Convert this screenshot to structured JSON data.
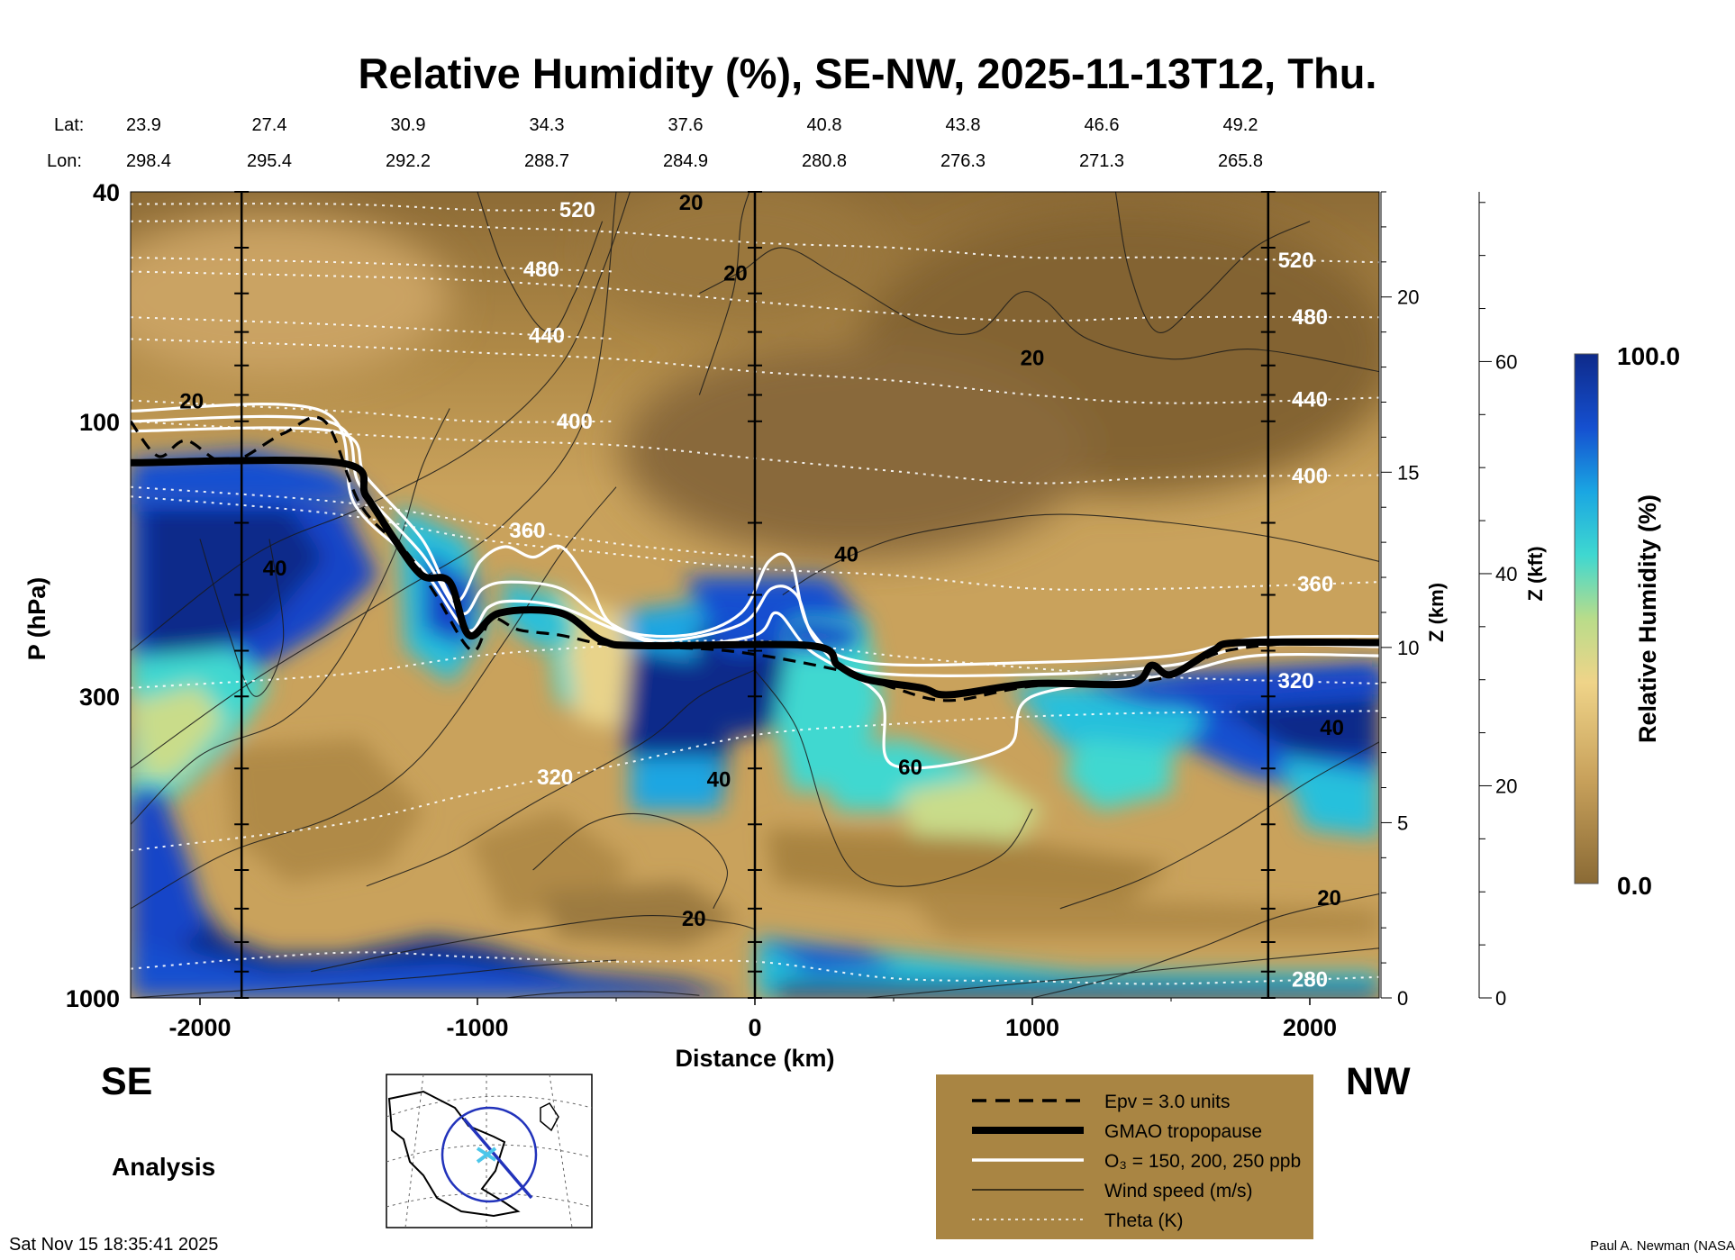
{
  "chart_data": {
    "type": "heatmap",
    "title": "Relative Humidity (%), SE-NW, 2025-11-13T12, Thu.",
    "xlabel": "Distance (km)",
    "ylabel": "P (hPa)",
    "ylabel_right_km": "Z (km)",
    "ylabel_right_kft": "Z (kft)",
    "colorbar_label": "Relative Humidity (%)",
    "colorbar_range": [
      0.0,
      100.0
    ],
    "colorbar_max_label": "100.0",
    "colorbar_min_label": "0.0",
    "colors": {
      "dry": "#8a6a35",
      "mid": "#e8c777",
      "moist_low": "#35d2cd",
      "moist_high": "#0e2a8a",
      "tropopause": "#000000",
      "ozone": "#ffffff"
    },
    "xlim": [
      -2250,
      2250
    ],
    "ylim": [
      1000,
      40
    ],
    "y_scale": "log",
    "x_ticks": [
      {
        "v": -2000,
        "label": "-2000"
      },
      {
        "v": -1000,
        "label": "-1000"
      },
      {
        "v": 0,
        "label": "0"
      },
      {
        "v": 1000,
        "label": "1000"
      },
      {
        "v": 2000,
        "label": "2000"
      }
    ],
    "p_ticks": [
      {
        "v": 40,
        "label": "40"
      },
      {
        "v": 100,
        "label": "100"
      },
      {
        "v": 300,
        "label": "300"
      },
      {
        "v": 1000,
        "label": "1000"
      }
    ],
    "z_km_ticks": [
      {
        "v": 0,
        "label": "0"
      },
      {
        "v": 5,
        "label": "5"
      },
      {
        "v": 10,
        "label": "10"
      },
      {
        "v": 15,
        "label": "15"
      },
      {
        "v": 20,
        "label": "20"
      }
    ],
    "z_kft_ticks": [
      {
        "v": 0,
        "label": "0"
      },
      {
        "v": 20,
        "label": "20"
      },
      {
        "v": 40,
        "label": "40"
      },
      {
        "v": 60,
        "label": "60"
      }
    ],
    "lat_label": "Lat:",
    "lon_label": "Lon:",
    "latlon_columns": [
      {
        "x": -2250,
        "lat": "23.9",
        "lon": "298.4"
      },
      {
        "x": -1750,
        "lat": "27.4",
        "lon": "295.4"
      },
      {
        "x": -1250,
        "lat": "30.9",
        "lon": "292.2"
      },
      {
        "x": -750,
        "lat": "34.3",
        "lon": "288.7"
      },
      {
        "x": -250,
        "lat": "37.6",
        "lon": "284.9"
      },
      {
        "x": 250,
        "lat": "40.8",
        "lon": "280.8"
      },
      {
        "x": 750,
        "lat": "43.8",
        "lon": "276.3"
      },
      {
        "x": 1250,
        "lat": "46.6",
        "lon": "271.3"
      },
      {
        "x": 1750,
        "lat": "49.2",
        "lon": "265.8"
      }
    ],
    "vertical_marker_x": [
      -1850,
      0,
      1850
    ],
    "tropopause_p": [
      [
        -2250,
        118
      ],
      [
        -1500,
        118
      ],
      [
        -1400,
        135
      ],
      [
        -1300,
        160
      ],
      [
        -1200,
        185
      ],
      [
        -1100,
        190
      ],
      [
        -1030,
        235
      ],
      [
        -920,
        215
      ],
      [
        -700,
        215
      ],
      [
        -550,
        240
      ],
      [
        -400,
        245
      ],
      [
        200,
        245
      ],
      [
        300,
        265
      ],
      [
        400,
        280
      ],
      [
        600,
        290
      ],
      [
        700,
        298
      ],
      [
        1000,
        285
      ],
      [
        1350,
        285
      ],
      [
        1430,
        265
      ],
      [
        1500,
        275
      ],
      [
        1650,
        250
      ],
      [
        1750,
        242
      ],
      [
        2250,
        242
      ]
    ],
    "epv_p": [
      [
        -2250,
        100
      ],
      [
        -2150,
        115
      ],
      [
        -2050,
        108
      ],
      [
        -1900,
        118
      ],
      [
        -1700,
        105
      ],
      [
        -1550,
        100
      ],
      [
        -1420,
        140
      ],
      [
        -1250,
        170
      ],
      [
        -1150,
        200
      ],
      [
        -1020,
        250
      ],
      [
        -950,
        220
      ],
      [
        -850,
        230
      ],
      [
        -700,
        235
      ],
      [
        -500,
        245
      ],
      [
        -100,
        250
      ],
      [
        300,
        270
      ],
      [
        500,
        290
      ],
      [
        700,
        305
      ],
      [
        1000,
        288
      ],
      [
        1450,
        280
      ],
      [
        1700,
        250
      ],
      [
        2100,
        240
      ],
      [
        2250,
        242
      ]
    ],
    "ozone_contours": [
      {
        "level": "150 ppb",
        "p": [
          [
            -2250,
            104
          ],
          [
            -1520,
            104
          ],
          [
            -1400,
            125
          ],
          [
            -1200,
            160
          ],
          [
            -1080,
            205
          ],
          [
            -990,
            175
          ],
          [
            -900,
            165
          ],
          [
            -800,
            172
          ],
          [
            -700,
            165
          ],
          [
            -600,
            190
          ],
          [
            -500,
            228
          ],
          [
            -250,
            235
          ],
          [
            -50,
            215
          ],
          [
            50,
            175
          ],
          [
            130,
            175
          ],
          [
            200,
            230
          ],
          [
            400,
            262
          ],
          [
            1000,
            262
          ],
          [
            1500,
            255
          ],
          [
            1800,
            238
          ],
          [
            2250,
            236
          ]
        ]
      },
      {
        "level": "200 ppb",
        "p": [
          [
            -2250,
            100
          ],
          [
            -1540,
            100
          ],
          [
            -1420,
            130
          ],
          [
            -1200,
            170
          ],
          [
            -1060,
            215
          ],
          [
            -980,
            195
          ],
          [
            -880,
            190
          ],
          [
            -700,
            195
          ],
          [
            -550,
            220
          ],
          [
            -350,
            240
          ],
          [
            -50,
            225
          ],
          [
            60,
            195
          ],
          [
            150,
            200
          ],
          [
            220,
            240
          ],
          [
            400,
            272
          ],
          [
            1000,
            275
          ],
          [
            1500,
            265
          ],
          [
            1800,
            245
          ],
          [
            2250,
            246
          ]
        ]
      },
      {
        "level": "250 ppb",
        "p": [
          [
            -2250,
            96
          ],
          [
            -1560,
            96
          ],
          [
            -1440,
            140
          ],
          [
            -1200,
            180
          ],
          [
            -1040,
            230
          ],
          [
            -960,
            210
          ],
          [
            -870,
            205
          ],
          [
            -700,
            210
          ],
          [
            -500,
            230
          ],
          [
            -300,
            245
          ],
          [
            0,
            235
          ],
          [
            80,
            215
          ],
          [
            200,
            250
          ],
          [
            450,
            300
          ],
          [
            500,
            395
          ],
          [
            900,
            370
          ],
          [
            1000,
            300
          ],
          [
            1500,
            275
          ],
          [
            1800,
            255
          ],
          [
            2250,
            255
          ]
        ]
      }
    ],
    "theta_contours": [
      {
        "label": "280",
        "p": [
          [
            -2250,
            890
          ],
          [
            -1500,
            835
          ],
          [
            -1000,
            850
          ],
          [
            -500,
            865
          ],
          [
            0,
            865
          ],
          [
            500,
            925
          ],
          [
            1000,
            935
          ],
          [
            1500,
            945
          ],
          [
            2250,
            920
          ]
        ],
        "label_x": 2000
      },
      {
        "label": "320",
        "p": [
          [
            -2250,
            290
          ],
          [
            -1500,
            275
          ],
          [
            -1000,
            255
          ],
          [
            -500,
            245
          ],
          [
            0,
            240
          ],
          [
            500,
            255
          ],
          [
            1000,
            268
          ],
          [
            1500,
            278
          ],
          [
            2250,
            285
          ]
        ],
        "label_x": 1950
      },
      {
        "label": "320",
        "p": [
          [
            -2250,
            555
          ],
          [
            -1500,
            500
          ],
          [
            -1000,
            440
          ],
          [
            -500,
            395
          ],
          [
            0,
            350
          ],
          [
            500,
            335
          ],
          [
            1000,
            325
          ],
          [
            1500,
            320
          ],
          [
            2250,
            318
          ]
        ],
        "label_x": -720
      },
      {
        "label": "360",
        "p": [
          [
            -2250,
            135
          ],
          [
            -1500,
            145
          ],
          [
            -1000,
            160
          ],
          [
            -500,
            170
          ],
          [
            0,
            180
          ],
          [
            500,
            185
          ],
          [
            1000,
            195
          ],
          [
            1500,
            195
          ],
          [
            2250,
            190
          ]
        ],
        "label_x": 2020
      },
      {
        "label": "360",
        "p": [
          [
            -2250,
            130
          ],
          [
            -1500,
            138
          ],
          [
            -1000,
            150
          ],
          [
            -500,
            163
          ],
          [
            0,
            172
          ]
        ],
        "label_x": -820
      },
      {
        "label": "400",
        "p": [
          [
            -2250,
            100
          ],
          [
            -1500,
            105
          ],
          [
            -1000,
            108
          ],
          [
            -500,
            110
          ],
          [
            0,
            116
          ],
          [
            500,
            122
          ],
          [
            1000,
            128
          ],
          [
            1500,
            125
          ],
          [
            2250,
            124
          ]
        ],
        "label_x": 2000
      },
      {
        "label": "400",
        "p": [
          [
            -2250,
            92
          ],
          [
            -1500,
            96
          ],
          [
            -1000,
            100
          ],
          [
            -500,
            100
          ]
        ],
        "label_x": -650
      },
      {
        "label": "440",
        "p": [
          [
            -2250,
            72
          ],
          [
            -1500,
            74
          ],
          [
            -1000,
            76
          ],
          [
            -500,
            78
          ],
          [
            0,
            82
          ],
          [
            500,
            85
          ],
          [
            1000,
            90
          ],
          [
            1500,
            93
          ],
          [
            2250,
            91
          ]
        ],
        "label_x": 2000
      },
      {
        "label": "440",
        "p": [
          [
            -2250,
            66
          ],
          [
            -1500,
            68
          ],
          [
            -1000,
            70
          ],
          [
            -500,
            72
          ]
        ],
        "label_x": -750
      },
      {
        "label": "480",
        "p": [
          [
            -2250,
            55
          ],
          [
            -1500,
            56
          ],
          [
            -1000,
            57
          ],
          [
            -500,
            59
          ],
          [
            0,
            62
          ],
          [
            500,
            65
          ],
          [
            1000,
            67
          ],
          [
            1500,
            66
          ],
          [
            2250,
            66
          ]
        ],
        "label_x": 2000
      },
      {
        "label": "480",
        "p": [
          [
            -2250,
            52
          ],
          [
            -1500,
            53
          ],
          [
            -1000,
            54
          ],
          [
            -500,
            55
          ]
        ],
        "label_x": -770
      },
      {
        "label": "520",
        "p": [
          [
            -2250,
            45
          ],
          [
            -1500,
            45
          ],
          [
            -1000,
            46
          ],
          [
            -500,
            47
          ],
          [
            0,
            49
          ],
          [
            500,
            50
          ],
          [
            1000,
            52
          ],
          [
            1500,
            52
          ],
          [
            2250,
            53
          ]
        ],
        "label_x": 1950
      },
      {
        "label": "520",
        "p": [
          [
            -2250,
            42
          ],
          [
            -1500,
            42
          ],
          [
            -1000,
            43
          ],
          [
            -700,
            43
          ]
        ],
        "label_x": -640
      }
    ],
    "wind_labels": [
      {
        "x": -1730,
        "p": 185,
        "label": "40"
      },
      {
        "x": -2030,
        "p": 95,
        "label": "20"
      },
      {
        "x": -230,
        "p": 43,
        "label": "20"
      },
      {
        "x": -70,
        "p": 57,
        "label": "20"
      },
      {
        "x": 1000,
        "p": 80,
        "label": "20"
      },
      {
        "x": 330,
        "p": 175,
        "label": "40"
      },
      {
        "x": -130,
        "p": 430,
        "label": "40"
      },
      {
        "x": 560,
        "p": 410,
        "label": "60"
      },
      {
        "x": -220,
        "p": 750,
        "label": "20"
      },
      {
        "x": 2080,
        "p": 350,
        "label": "40"
      },
      {
        "x": 2070,
        "p": 690,
        "label": "20"
      }
    ],
    "legend": [
      {
        "style": "dashed",
        "label": "Epv = 3.0 units"
      },
      {
        "style": "thick",
        "label": "GMAO tropopause"
      },
      {
        "style": "white",
        "label": "O₃ = 150, 200, 250 ppb"
      },
      {
        "style": "thin",
        "label": "Wind speed (m/s)"
      },
      {
        "style": "dotted",
        "label": "Theta (K)"
      }
    ]
  },
  "labels": {
    "se": "SE",
    "nw": "NW",
    "analysis": "Analysis",
    "timestamp": "Sat Nov 15 18:35:41 2025",
    "credit": "Paul A. Newman (NASA"
  }
}
